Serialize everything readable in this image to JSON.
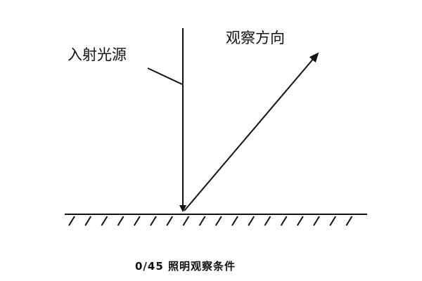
{
  "labels": {
    "incident_light": "入射光源",
    "viewing_direction": "观察方向"
  },
  "caption": "0/45 照明观察条件",
  "colors": {
    "line": "#111111",
    "background": "#ffffff"
  }
}
